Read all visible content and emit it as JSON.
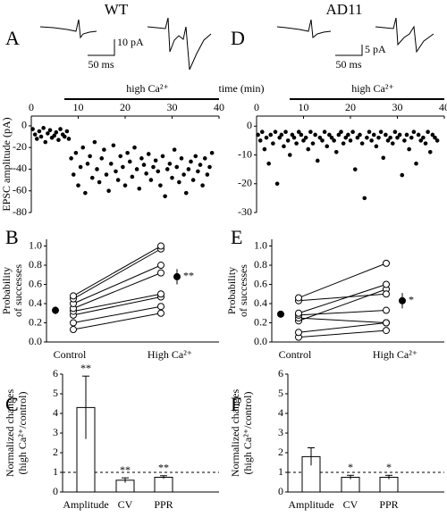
{
  "columns": [
    "WT",
    "AD11"
  ],
  "chart_data": [
    {
      "type": "scatter",
      "panel": "A",
      "xlabel": "time (min)",
      "ylabel": [
        "EPSC amplitude (pA)"
      ],
      "annotation": "high Ca²⁺",
      "scale_bar": {
        "y_label": "10 pA",
        "x_label": "50 ms"
      },
      "x": [
        0.3,
        0.8,
        1.2,
        1.7,
        2.1,
        2.6,
        3,
        3.5,
        4,
        4.4,
        4.9,
        5.3,
        5.8,
        6.2,
        6.7,
        7.1,
        7.6,
        8,
        8.5,
        9,
        9.5,
        10,
        10.5,
        11,
        11.5,
        12,
        12.5,
        13,
        13.5,
        14,
        14.5,
        15,
        15.5,
        16,
        16.5,
        17,
        17.5,
        18,
        18.5,
        19,
        19.5,
        20,
        20.5,
        21,
        21.5,
        22,
        22.5,
        23,
        23.5,
        24,
        24.5,
        25,
        25.5,
        26,
        26.5,
        27,
        27.5,
        28,
        28.5,
        29,
        29.5,
        30,
        30.5,
        31,
        31.5,
        32,
        32.5,
        33,
        33.5,
        34,
        34.5,
        35,
        35.5,
        36,
        36.5,
        37,
        37.5,
        38,
        38.5
      ],
      "values": [
        -3,
        -8,
        -12,
        -5,
        -10,
        -2,
        -15,
        -7,
        -4,
        -11,
        -9,
        -6,
        -13,
        -3,
        -8,
        -10,
        -5,
        -12,
        -30,
        -45,
        -25,
        -55,
        -38,
        -20,
        -62,
        -35,
        -28,
        -48,
        -15,
        -40,
        -52,
        -30,
        -22,
        -45,
        -60,
        -35,
        -18,
        -42,
        -50,
        -28,
        -38,
        -55,
        -25,
        -33,
        -47,
        -20,
        -40,
        -58,
        -30,
        -36,
        -44,
        -26,
        -50,
        -38,
        -32,
        -42,
        -55,
        -28,
        -65,
        -40,
        -35,
        -48,
        -22,
        -38,
        -52,
        -30,
        -45,
        -62,
        -40,
        -33,
        -50,
        -28,
        -42,
        -36,
        -55,
        -30,
        -45,
        -38,
        -25
      ],
      "color": "#000000",
      "xlim": [
        0,
        40
      ],
      "xticks": [
        0,
        10,
        20,
        30,
        40
      ],
      "ylim": [
        -80,
        9
      ],
      "yticks": [
        0,
        -20,
        -40,
        -60,
        -80
      ]
    },
    {
      "type": "paired",
      "panel": "B",
      "ylabel": [
        "Probability",
        "of successes"
      ],
      "categories": [
        "Control",
        "High Ca²⁺"
      ],
      "series": [
        {
          "values": [
            0.13,
            0.3
          ]
        },
        {
          "values": [
            0.2,
            0.37
          ]
        },
        {
          "values": [
            0.28,
            0.47
          ]
        },
        {
          "values": [
            0.32,
            0.5
          ]
        },
        {
          "values": [
            0.35,
            0.72
          ]
        },
        {
          "values": [
            0.4,
            0.8
          ]
        },
        {
          "values": [
            0.45,
            0.97
          ]
        },
        {
          "values": [
            0.48,
            1.0
          ]
        }
      ],
      "mean": {
        "values": [
          0.33,
          0.68
        ],
        "errors": [
          0.04,
          0.08
        ]
      },
      "annotation": "**",
      "ylim": [
        0,
        1.07
      ],
      "yticks": [
        {
          "value": 0,
          "label": "0.0"
        },
        {
          "value": 0.2,
          "label": "0.2"
        },
        {
          "value": 0.4,
          "label": "0.4"
        },
        {
          "value": 0.6,
          "label": "0.6"
        },
        {
          "value": 0.8,
          "label": "0.8"
        },
        {
          "value": 1,
          "label": "1.0"
        }
      ]
    },
    {
      "type": "bar",
      "panel": "C",
      "ylabel": [
        "Normalized changes",
        "(high Ca²⁺/control)"
      ],
      "categories": [
        "Amplitude",
        "CV",
        "PPR"
      ],
      "values": [
        4.3,
        0.6,
        0.75
      ],
      "errors": [
        1.6,
        0.12,
        0.08
      ],
      "annotations": [
        "**",
        "**",
        "**"
      ],
      "reference": 1,
      "ylim": [
        0,
        6
      ],
      "yticks": [
        0,
        1,
        2,
        3,
        4,
        5,
        6
      ]
    },
    {
      "type": "scatter",
      "panel": "D",
      "annotation": "high Ca²⁺",
      "scale_bar": {
        "y_label": "5 pA",
        "x_label": "50 ms"
      },
      "x": [
        0.3,
        0.8,
        1.2,
        1.7,
        2.1,
        2.6,
        3,
        3.5,
        4,
        4.4,
        4.9,
        5.3,
        5.8,
        6.2,
        6.7,
        7.1,
        7.6,
        8,
        8.5,
        9,
        9.5,
        10,
        10.5,
        11,
        11.5,
        12,
        12.5,
        13,
        13.5,
        14,
        14.5,
        15,
        15.5,
        16,
        16.5,
        17,
        17.5,
        18,
        18.5,
        19,
        19.5,
        20,
        20.5,
        21,
        21.5,
        22,
        22.5,
        23,
        23.5,
        24,
        24.5,
        25,
        25.5,
        26,
        26.5,
        27,
        27.5,
        28,
        28.5,
        29,
        29.5,
        30,
        30.5,
        31,
        31.5,
        32,
        32.5,
        33,
        33.5,
        34,
        34.5,
        35,
        35.5,
        36,
        36.5,
        37,
        37.5,
        38,
        38.5
      ],
      "values": [
        -3,
        -5,
        -2,
        -8,
        -4,
        -13,
        -3,
        -6,
        -2,
        -20,
        -4,
        -3,
        -7,
        -2,
        -5,
        -10,
        -3,
        -4,
        -6,
        -2,
        -3,
        -5,
        -4,
        -8,
        -2,
        -6,
        -3,
        -12,
        -4,
        -5,
        -2,
        -7,
        -3,
        -4,
        -5,
        -9,
        -3,
        -2,
        -6,
        -4,
        -3,
        -5,
        -2,
        -15,
        -4,
        -3,
        -6,
        -25,
        -4,
        -2,
        -5,
        -3,
        -7,
        -4,
        -2,
        -11,
        -3,
        -5,
        -4,
        -6,
        -2,
        -4,
        -3,
        -17,
        -5,
        -3,
        -8,
        -4,
        -2,
        -13,
        -3,
        -5,
        -4,
        -6,
        -2,
        -9,
        -3,
        -4,
        -5
      ],
      "color": "#000000",
      "xlim": [
        0,
        40
      ],
      "xticks": [
        0,
        10,
        20,
        30,
        40
      ],
      "ylim": [
        -30,
        3.5
      ],
      "yticks": [
        0,
        -10,
        -20,
        -30
      ]
    },
    {
      "type": "paired",
      "panel": "E",
      "ylabel": [
        "Probability",
        "of successes"
      ],
      "categories": [
        "Control",
        "High Ca²⁺"
      ],
      "series": [
        {
          "values": [
            0.05,
            0.12
          ]
        },
        {
          "values": [
            0.1,
            0.2
          ]
        },
        {
          "values": [
            0.22,
            0.55
          ]
        },
        {
          "values": [
            0.25,
            0.2
          ]
        },
        {
          "values": [
            0.28,
            0.33
          ]
        },
        {
          "values": [
            0.3,
            0.6
          ]
        },
        {
          "values": [
            0.43,
            0.5
          ]
        },
        {
          "values": [
            0.46,
            0.82
          ]
        }
      ],
      "mean": {
        "values": [
          0.29,
          0.43
        ],
        "errors": [
          0.03,
          0.08
        ]
      },
      "annotation": "*",
      "ylim": [
        0,
        1.07
      ],
      "yticks": [
        {
          "value": 0,
          "label": "0.0"
        },
        {
          "value": 0.2,
          "label": "0.2"
        },
        {
          "value": 0.4,
          "label": "0.4"
        },
        {
          "value": 0.6,
          "label": "0.6"
        },
        {
          "value": 0.8,
          "label": "0.8"
        },
        {
          "value": 1,
          "label": "1.0"
        }
      ]
    },
    {
      "type": "bar",
      "panel": "F",
      "ylabel": [
        "Normalized changes",
        "(high Ca²⁺/control)"
      ],
      "categories": [
        "Amplitude",
        "CV",
        "PPR"
      ],
      "values": [
        1.8,
        0.75,
        0.75
      ],
      "errors": [
        0.45,
        0.1,
        0.1
      ],
      "annotations": [
        null,
        "*",
        "*"
      ],
      "reference": 1,
      "ylim": [
        0,
        6
      ],
      "yticks": [
        0,
        1,
        2,
        3,
        4,
        5,
        6
      ]
    }
  ]
}
